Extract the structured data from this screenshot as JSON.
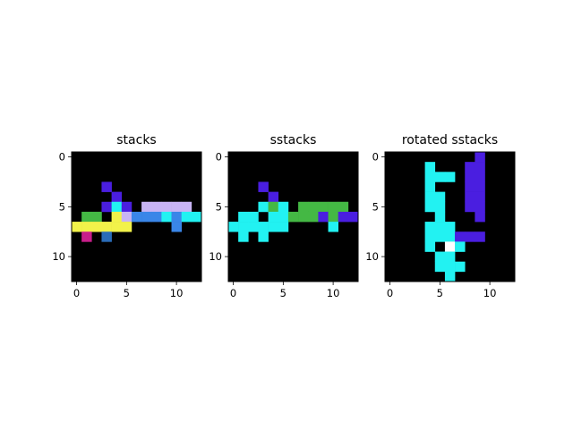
{
  "chart_data": [
    {
      "type": "heatmap",
      "title": "stacks",
      "xlim": [
        -0.5,
        12.5
      ],
      "ylim": [
        12.5,
        -0.5
      ],
      "xticks": [
        "0",
        "5",
        "10"
      ],
      "yticks": [
        "0",
        "5",
        "10"
      ],
      "background": "#000000",
      "cells": [
        {
          "row": 3,
          "col": 3,
          "color": "#4a1ee0"
        },
        {
          "row": 4,
          "col": 4,
          "color": "#4a1ee0"
        },
        {
          "row": 5,
          "col": 3,
          "color": "#4a1ee0"
        },
        {
          "row": 5,
          "col": 4,
          "color": "#22f2f2"
        },
        {
          "row": 5,
          "col": 5,
          "color": "#4a1ee0"
        },
        {
          "row": 5,
          "col": 7,
          "color": "#c8b4f4"
        },
        {
          "row": 5,
          "col": 8,
          "color": "#c8b4f4"
        },
        {
          "row": 5,
          "col": 9,
          "color": "#c8b4f4"
        },
        {
          "row": 5,
          "col": 10,
          "color": "#c8b4f4"
        },
        {
          "row": 5,
          "col": 11,
          "color": "#c8b4f4"
        },
        {
          "row": 6,
          "col": 1,
          "color": "#44b844"
        },
        {
          "row": 6,
          "col": 2,
          "color": "#44b844"
        },
        {
          "row": 6,
          "col": 4,
          "color": "#f2f24a"
        },
        {
          "row": 6,
          "col": 5,
          "color": "#c8b4f4"
        },
        {
          "row": 6,
          "col": 6,
          "color": "#3a86e8"
        },
        {
          "row": 6,
          "col": 7,
          "color": "#3a86e8"
        },
        {
          "row": 6,
          "col": 8,
          "color": "#3a86e8"
        },
        {
          "row": 6,
          "col": 9,
          "color": "#22f2f2"
        },
        {
          "row": 6,
          "col": 10,
          "color": "#3a86e8"
        },
        {
          "row": 6,
          "col": 11,
          "color": "#22f2f2"
        },
        {
          "row": 6,
          "col": 12,
          "color": "#22f2f2"
        },
        {
          "row": 7,
          "col": 0,
          "color": "#f2f24a"
        },
        {
          "row": 7,
          "col": 1,
          "color": "#f2f24a"
        },
        {
          "row": 7,
          "col": 2,
          "color": "#f2f24a"
        },
        {
          "row": 7,
          "col": 3,
          "color": "#f2f24a"
        },
        {
          "row": 7,
          "col": 4,
          "color": "#f2f24a"
        },
        {
          "row": 7,
          "col": 5,
          "color": "#f2f24a"
        },
        {
          "row": 7,
          "col": 10,
          "color": "#3a86e8"
        },
        {
          "row": 8,
          "col": 1,
          "color": "#c81e8a"
        },
        {
          "row": 8,
          "col": 3,
          "color": "#2a6cb8"
        }
      ]
    },
    {
      "type": "heatmap",
      "title": "sstacks",
      "xlim": [
        -0.5,
        12.5
      ],
      "ylim": [
        12.5,
        -0.5
      ],
      "xticks": [
        "0",
        "5",
        "10"
      ],
      "yticks": [
        "0",
        "5",
        "10"
      ],
      "background": "#000000",
      "cells": [
        {
          "row": 3,
          "col": 3,
          "color": "#4a1ee0"
        },
        {
          "row": 4,
          "col": 4,
          "color": "#4a1ee0"
        },
        {
          "row": 5,
          "col": 3,
          "color": "#22f2f2"
        },
        {
          "row": 5,
          "col": 4,
          "color": "#44b844"
        },
        {
          "row": 5,
          "col": 5,
          "color": "#22f2f2"
        },
        {
          "row": 5,
          "col": 7,
          "color": "#44b844"
        },
        {
          "row": 5,
          "col": 8,
          "color": "#44b844"
        },
        {
          "row": 5,
          "col": 9,
          "color": "#44b844"
        },
        {
          "row": 5,
          "col": 10,
          "color": "#44b844"
        },
        {
          "row": 5,
          "col": 11,
          "color": "#44b844"
        },
        {
          "row": 6,
          "col": 1,
          "color": "#22f2f2"
        },
        {
          "row": 6,
          "col": 2,
          "color": "#22f2f2"
        },
        {
          "row": 6,
          "col": 4,
          "color": "#22f2f2"
        },
        {
          "row": 6,
          "col": 5,
          "color": "#22f2f2"
        },
        {
          "row": 6,
          "col": 6,
          "color": "#44b844"
        },
        {
          "row": 6,
          "col": 7,
          "color": "#44b844"
        },
        {
          "row": 6,
          "col": 8,
          "color": "#44b844"
        },
        {
          "row": 6,
          "col": 9,
          "color": "#4a1ee0"
        },
        {
          "row": 6,
          "col": 10,
          "color": "#44b844"
        },
        {
          "row": 6,
          "col": 11,
          "color": "#4a1ee0"
        },
        {
          "row": 6,
          "col": 12,
          "color": "#4a1ee0"
        },
        {
          "row": 7,
          "col": 0,
          "color": "#22f2f2"
        },
        {
          "row": 7,
          "col": 1,
          "color": "#22f2f2"
        },
        {
          "row": 7,
          "col": 2,
          "color": "#22f2f2"
        },
        {
          "row": 7,
          "col": 3,
          "color": "#22f2f2"
        },
        {
          "row": 7,
          "col": 4,
          "color": "#22f2f2"
        },
        {
          "row": 7,
          "col": 5,
          "color": "#22f2f2"
        },
        {
          "row": 7,
          "col": 10,
          "color": "#22f2f2"
        },
        {
          "row": 8,
          "col": 1,
          "color": "#22f2f2"
        },
        {
          "row": 8,
          "col": 3,
          "color": "#22f2f2"
        }
      ]
    },
    {
      "type": "heatmap",
      "title": "rotated sstacks",
      "xlim": [
        -0.5,
        12.5
      ],
      "ylim": [
        12.5,
        -0.5
      ],
      "xticks": [
        "0",
        "5",
        "10"
      ],
      "yticks": [
        "0",
        "5",
        "10"
      ],
      "background": "#000000",
      "cells": [
        {
          "row": 0,
          "col": 9,
          "color": "#4a1ee0"
        },
        {
          "row": 1,
          "col": 4,
          "color": "#22f2f2"
        },
        {
          "row": 1,
          "col": 8,
          "color": "#4a1ee0"
        },
        {
          "row": 1,
          "col": 9,
          "color": "#4a1ee0"
        },
        {
          "row": 2,
          "col": 4,
          "color": "#22f2f2"
        },
        {
          "row": 2,
          "col": 5,
          "color": "#22f2f2"
        },
        {
          "row": 2,
          "col": 6,
          "color": "#22f2f2"
        },
        {
          "row": 2,
          "col": 8,
          "color": "#4a1ee0"
        },
        {
          "row": 2,
          "col": 9,
          "color": "#4a1ee0"
        },
        {
          "row": 3,
          "col": 4,
          "color": "#22f2f2"
        },
        {
          "row": 3,
          "col": 8,
          "color": "#4a1ee0"
        },
        {
          "row": 3,
          "col": 9,
          "color": "#4a1ee0"
        },
        {
          "row": 4,
          "col": 4,
          "color": "#22f2f2"
        },
        {
          "row": 4,
          "col": 5,
          "color": "#22f2f2"
        },
        {
          "row": 4,
          "col": 8,
          "color": "#4a1ee0"
        },
        {
          "row": 4,
          "col": 9,
          "color": "#4a1ee0"
        },
        {
          "row": 5,
          "col": 4,
          "color": "#22f2f2"
        },
        {
          "row": 5,
          "col": 5,
          "color": "#22f2f2"
        },
        {
          "row": 5,
          "col": 8,
          "color": "#4a1ee0"
        },
        {
          "row": 5,
          "col": 9,
          "color": "#4a1ee0"
        },
        {
          "row": 6,
          "col": 5,
          "color": "#22f2f2"
        },
        {
          "row": 6,
          "col": 9,
          "color": "#4a1ee0"
        },
        {
          "row": 7,
          "col": 4,
          "color": "#22f2f2"
        },
        {
          "row": 7,
          "col": 5,
          "color": "#22f2f2"
        },
        {
          "row": 7,
          "col": 6,
          "color": "#22f2f2"
        },
        {
          "row": 8,
          "col": 4,
          "color": "#22f2f2"
        },
        {
          "row": 8,
          "col": 5,
          "color": "#22f2f2"
        },
        {
          "row": 8,
          "col": 6,
          "color": "#22f2f2"
        },
        {
          "row": 8,
          "col": 7,
          "color": "#4a1ee0"
        },
        {
          "row": 8,
          "col": 8,
          "color": "#4a1ee0"
        },
        {
          "row": 8,
          "col": 9,
          "color": "#4a1ee0"
        },
        {
          "row": 9,
          "col": 4,
          "color": "#22f2f2"
        },
        {
          "row": 9,
          "col": 6,
          "color": "#ffffff"
        },
        {
          "row": 9,
          "col": 7,
          "color": "#22f2f2"
        },
        {
          "row": 10,
          "col": 5,
          "color": "#22f2f2"
        },
        {
          "row": 10,
          "col": 6,
          "color": "#22f2f2"
        },
        {
          "row": 11,
          "col": 5,
          "color": "#22f2f2"
        },
        {
          "row": 11,
          "col": 6,
          "color": "#22f2f2"
        },
        {
          "row": 11,
          "col": 7,
          "color": "#22f2f2"
        },
        {
          "row": 12,
          "col": 6,
          "color": "#22f2f2"
        }
      ]
    }
  ]
}
